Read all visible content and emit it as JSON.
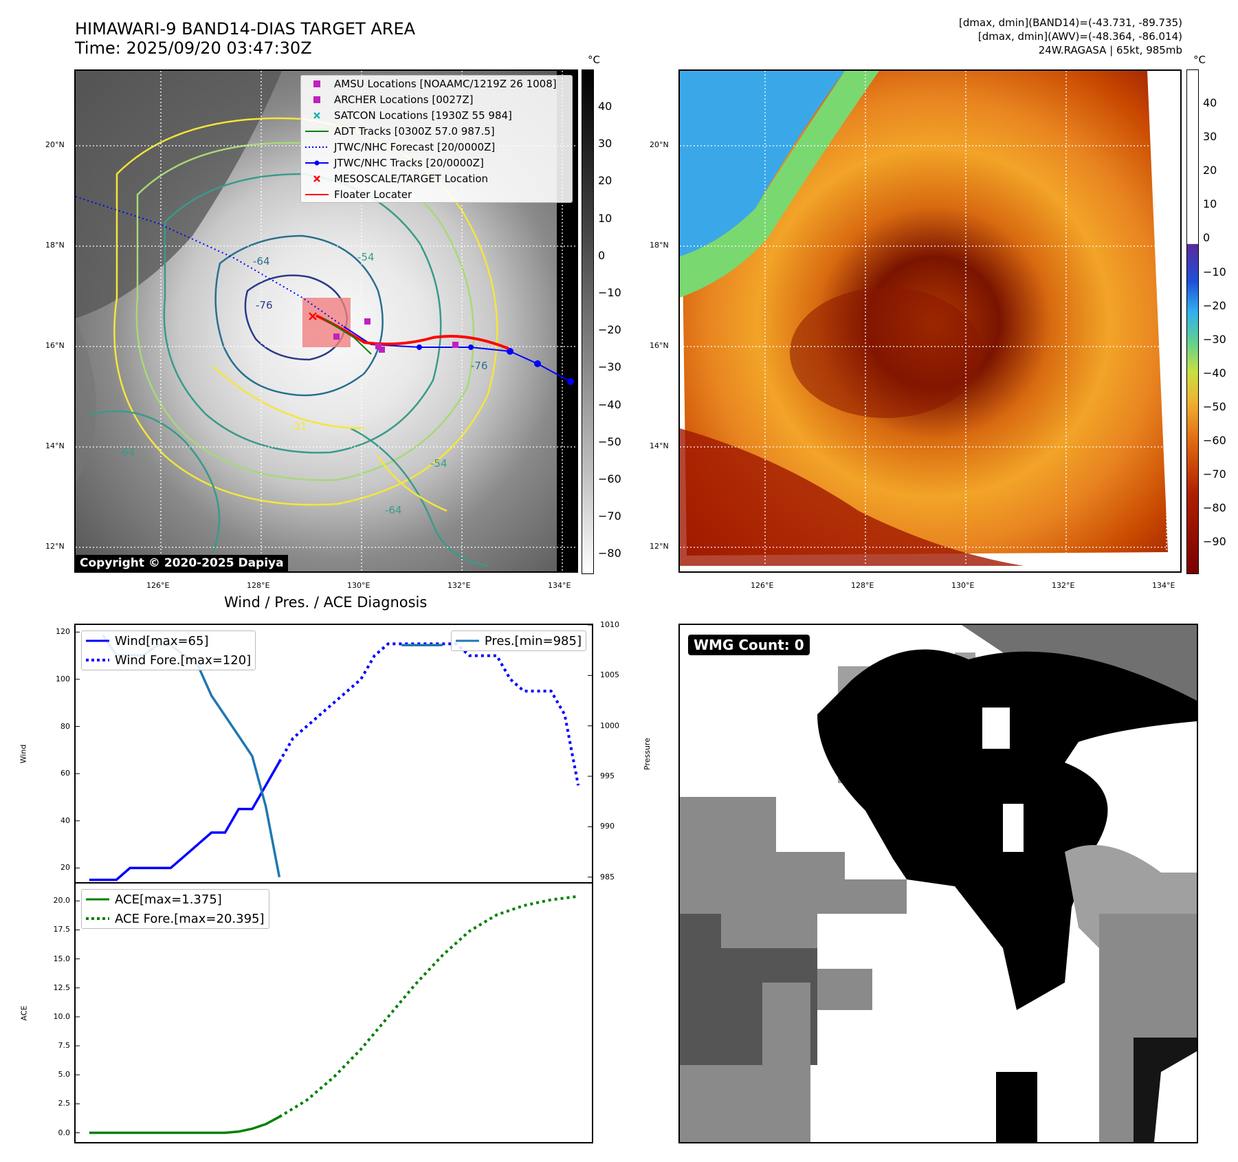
{
  "header": {
    "title_line1": "HIMAWARI-9 BAND14-DIAS TARGET AREA",
    "title_line2": "Time: 2025/09/20 03:47:30Z",
    "right_line1": "[dmax, dmin](BAND14)=(-43.731, -89.735)",
    "right_line2": "[dmax, dmin](AWV)=(-48.364, -86.014)",
    "right_line3": "24W.RAGASA | 65kt, 985mb"
  },
  "map_axes": {
    "lat_labels": [
      "20°N",
      "18°N",
      "16°N",
      "14°N",
      "12°N"
    ],
    "lon_labels": [
      "126°E",
      "128°E",
      "130°E",
      "132°E",
      "134°E"
    ]
  },
  "legend_map": {
    "items": [
      {
        "label": "AMSU Locations [NOAAMC/1219Z 26 1008]",
        "color": "#c020c0",
        "kind": "square"
      },
      {
        "label": "ARCHER Locations [0027Z]",
        "color": "#c020c0",
        "kind": "square"
      },
      {
        "label": "SATCON Locations [1930Z 55 984]",
        "color": "#20b0b0",
        "kind": "x"
      },
      {
        "label": "ADT Tracks [0300Z 57.0 987.5]",
        "color": "#008000",
        "kind": "line"
      },
      {
        "label": "JTWC/NHC Forecast [20/0000Z]",
        "color": "#0000ff",
        "kind": "dotted"
      },
      {
        "label": "JTWC/NHC Tracks [20/0000Z]",
        "color": "#0000ff",
        "kind": "linedot"
      },
      {
        "label": "MESOSCALE/TARGET Location",
        "color": "#ff0000",
        "kind": "x"
      },
      {
        "label": "Floater Locater",
        "color": "#ff0000",
        "kind": "line"
      }
    ]
  },
  "copyright": "Copyright © 2020-2025 Dapiya",
  "colorbar_left": {
    "unit": "°C",
    "ticks": [
      "40",
      "30",
      "20",
      "10",
      "0",
      "−10",
      "−20",
      "−30",
      "−40",
      "−50",
      "−60",
      "−70",
      "−80"
    ]
  },
  "colorbar_right": {
    "unit": "°C",
    "ticks": [
      "40",
      "30",
      "20",
      "10",
      "0",
      "−10",
      "−20",
      "−30",
      "−40",
      "−50",
      "−60",
      "−70",
      "−80",
      "−90"
    ]
  },
  "wmg_label": "WMG Count: 0",
  "diag_title": "Wind / Pres. / ACE Diagnosis",
  "contour_labels": [
    "-76",
    "-64",
    "-54",
    "-31",
    "-64",
    "-76",
    "-54",
    "-64"
  ],
  "chart_data": [
    {
      "type": "line",
      "title": "Wind / Pres. / ACE Diagnosis",
      "ylabel": "Wind",
      "y2label": "Pressure",
      "ylim": [
        14,
        123
      ],
      "y2lim": [
        984.5,
        1010
      ],
      "yticks": [
        20,
        40,
        60,
        80,
        100,
        120
      ],
      "y2ticks": [
        985,
        990,
        995,
        1000,
        1005,
        1010
      ],
      "series": [
        {
          "name": "Wind[max=65]",
          "axis": "left",
          "style": "solid",
          "color": "#0000ff",
          "x": [
            0,
            1,
            2,
            3,
            4,
            5,
            6,
            7,
            8,
            9,
            10,
            11,
            12,
            13
          ],
          "values": [
            15,
            15,
            15,
            20,
            20,
            20,
            20,
            25,
            30,
            35,
            35,
            45,
            45,
            55
          ]
        },
        {
          "name": "Wind[max=65]",
          "axis": "left",
          "style": "solid",
          "color": "#0000ff",
          "x": [
            13,
            14
          ],
          "values": [
            55,
            65
          ]
        },
        {
          "name": "Wind Fore.[max=120]",
          "axis": "left",
          "style": "dotted",
          "color": "#0000ff",
          "x": [
            14,
            15,
            16,
            17,
            18,
            19,
            20,
            21,
            22,
            23,
            24,
            25,
            26,
            27,
            28,
            29,
            30,
            31,
            32,
            33,
            34,
            35,
            36
          ],
          "values": [
            65,
            75,
            80,
            85,
            90,
            95,
            100,
            110,
            115,
            115,
            115,
            115,
            115,
            115,
            110,
            110,
            110,
            100,
            95,
            95,
            95,
            85,
            55
          ]
        },
        {
          "name": "Pres.[min=985]",
          "axis": "right",
          "style": "solid",
          "color": "#1f77b4",
          "x": [
            1,
            1.5,
            2,
            3,
            4,
            5,
            6,
            7,
            8,
            9,
            10,
            11,
            12,
            13,
            14
          ],
          "values": [
            1009,
            1008,
            1007,
            1007,
            1007,
            1008,
            1008,
            1007,
            1006,
            1003,
            1001,
            999,
            997,
            992,
            985
          ]
        },
        {
          "name": "Pres.[min=985]",
          "axis": "right",
          "style": "solid",
          "color": "#1f77b4",
          "x": [
            23,
            24,
            25,
            26
          ],
          "values": [
            1008,
            1008,
            1008,
            1008
          ]
        }
      ]
    },
    {
      "type": "line",
      "ylabel": "ACE",
      "ylim": [
        -0.8,
        21.5
      ],
      "yticks": [
        0.0,
        2.5,
        5.0,
        7.5,
        10.0,
        12.5,
        15.0,
        17.5,
        20.0
      ],
      "series": [
        {
          "name": "ACE[max=1.375]",
          "style": "solid",
          "color": "#008000",
          "x": [
            0,
            2,
            4,
            6,
            8,
            10,
            11,
            12,
            13,
            14
          ],
          "values": [
            0,
            0,
            0,
            0,
            0,
            0,
            0.1,
            0.35,
            0.75,
            1.375
          ]
        },
        {
          "name": "ACE Fore.[max=20.395]",
          "style": "dotted",
          "color": "#008000",
          "x": [
            14,
            16,
            18,
            20,
            22,
            24,
            26,
            28,
            30,
            32,
            34,
            36
          ],
          "values": [
            1.375,
            2.8,
            4.8,
            7.2,
            10.0,
            12.8,
            15.3,
            17.4,
            18.8,
            19.6,
            20.1,
            20.395
          ]
        }
      ]
    }
  ]
}
